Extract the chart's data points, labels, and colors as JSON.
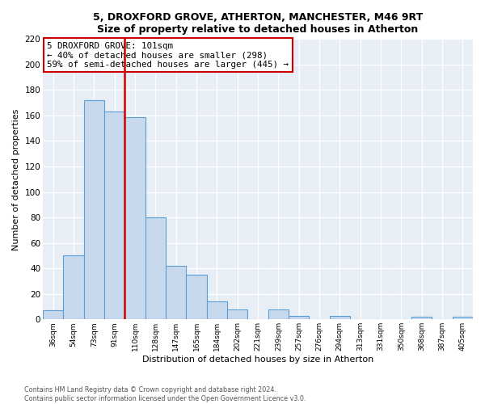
{
  "title1": "5, DROXFORD GROVE, ATHERTON, MANCHESTER, M46 9RT",
  "title2": "Size of property relative to detached houses in Atherton",
  "xlabel": "Distribution of detached houses by size in Atherton",
  "ylabel": "Number of detached properties",
  "footnote1": "Contains HM Land Registry data © Crown copyright and database right 2024.",
  "footnote2": "Contains public sector information licensed under the Open Government Licence v3.0.",
  "bin_labels": [
    "36sqm",
    "54sqm",
    "73sqm",
    "91sqm",
    "110sqm",
    "128sqm",
    "147sqm",
    "165sqm",
    "184sqm",
    "202sqm",
    "221sqm",
    "239sqm",
    "257sqm",
    "276sqm",
    "294sqm",
    "313sqm",
    "331sqm",
    "350sqm",
    "368sqm",
    "387sqm",
    "405sqm"
  ],
  "bar_values": [
    7,
    50,
    172,
    163,
    159,
    80,
    42,
    35,
    14,
    8,
    0,
    8,
    3,
    0,
    3,
    0,
    0,
    0,
    2,
    0,
    2
  ],
  "bar_color": "#c8d9ee",
  "bar_edge_color": "#5a9fd4",
  "vline_color": "#cc0000",
  "annotation_text1": "5 DROXFORD GROVE: 101sqm",
  "annotation_text2": "← 40% of detached houses are smaller (298)",
  "annotation_text3": "59% of semi-detached houses are larger (445) →",
  "annotation_box_color": "#ffffff",
  "annotation_border_color": "#cc0000",
  "plot_bg_color": "#e8eef5",
  "grid_color": "#ffffff",
  "ylim": [
    0,
    220
  ],
  "yticks": [
    0,
    20,
    40,
    60,
    80,
    100,
    120,
    140,
    160,
    180,
    200,
    220
  ]
}
